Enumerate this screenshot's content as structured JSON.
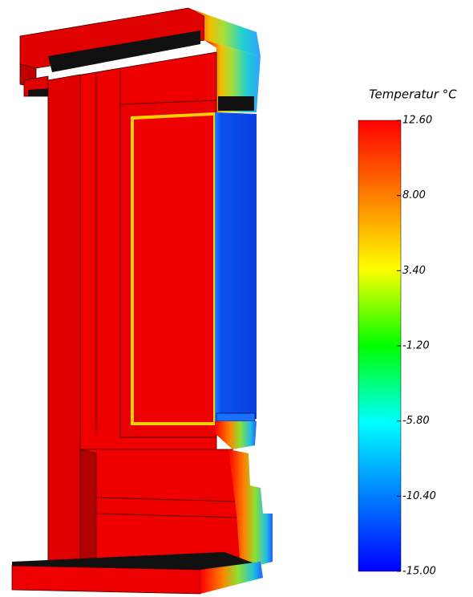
{
  "legend": {
    "title": "Temperatur °C",
    "ticks": [
      "12.60",
      "8.00",
      "3.40",
      "-1.20",
      "-5.80",
      "-10.40",
      "-15.00"
    ]
  }
}
